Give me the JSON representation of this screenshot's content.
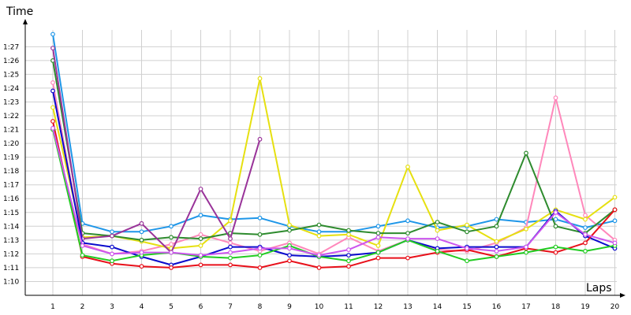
{
  "chart_data": {
    "type": "line",
    "title": "",
    "xlabel": "Laps",
    "ylabel": "Time",
    "grid": true,
    "legend": "none",
    "x": [
      1,
      2,
      3,
      4,
      5,
      6,
      7,
      8,
      9,
      10,
      11,
      12,
      13,
      14,
      15,
      16,
      17,
      18,
      19,
      20
    ],
    "x_tick_labels": [
      "1",
      "2",
      "3",
      "4",
      "5",
      "6",
      "7",
      "8",
      "9",
      "10",
      "11",
      "12",
      "13",
      "14",
      "15",
      "16",
      "17",
      "18",
      "19",
      "20"
    ],
    "y_ticks": [
      70,
      71,
      72,
      73,
      74,
      75,
      76,
      77,
      78,
      79,
      80,
      81,
      82,
      83,
      84,
      85,
      86,
      87
    ],
    "y_tick_labels": [
      "1:10",
      "1:11",
      "1:12",
      "1:13",
      "1:14",
      "1:15",
      "1:16",
      "1:17",
      "1:18",
      "1:19",
      "1:20",
      "1:21",
      "1:22",
      "1:23",
      "1:24",
      "1:25",
      "1:26",
      "1:27"
    ],
    "ylim": [
      69.0,
      88.9
    ],
    "xlim": [
      0.1,
      20.1
    ],
    "series": [
      {
        "color": "#1e96e8",
        "values": [
          87.9,
          74.2,
          73.6,
          73.6,
          74.0,
          74.8,
          74.5,
          74.6,
          74.0,
          73.6,
          73.6,
          74.0,
          74.4,
          73.9,
          74.0,
          74.5,
          74.3,
          74.5,
          73.9,
          74.4
        ]
      },
      {
        "color": "#ff88bb",
        "values": [
          84.4,
          72.7,
          72.0,
          72.2,
          72.7,
          73.4,
          72.8,
          72.2,
          72.8,
          72.0,
          73.2,
          72.2,
          73.0,
          72.3,
          72.2,
          72.8,
          73.9,
          83.3,
          74.8,
          73.0
        ]
      },
      {
        "color": "#e6e010",
        "values": [
          82.6,
          73.2,
          73.3,
          72.9,
          72.4,
          72.6,
          74.4,
          84.7,
          74.1,
          73.3,
          73.4,
          72.6,
          78.3,
          73.7,
          74.1,
          72.9,
          73.8,
          75.2,
          74.5,
          76.1
        ]
      },
      {
        "color": "#2e8b2e",
        "values": [
          86.0,
          73.5,
          73.3,
          73.0,
          73.2,
          73.1,
          73.5,
          73.4,
          73.7,
          74.1,
          73.7,
          73.5,
          73.5,
          74.3,
          73.6,
          74.0,
          79.3,
          74.0,
          73.5,
          75.2
        ]
      },
      {
        "color": "#993399",
        "values": [
          86.9,
          73.1,
          73.3,
          74.2,
          72.1,
          76.7,
          73.1,
          80.3,
          null,
          null,
          null,
          null,
          null,
          null,
          null,
          null,
          null,
          null,
          null,
          null
        ]
      },
      {
        "color": "#0a0acc",
        "values": [
          83.8,
          72.8,
          72.5,
          71.8,
          71.2,
          71.8,
          72.5,
          72.5,
          71.9,
          71.8,
          71.9,
          72.1,
          73.0,
          72.4,
          72.5,
          72.5,
          72.5,
          75.1,
          73.3,
          72.4
        ]
      },
      {
        "color": "#e8101a",
        "values": [
          81.6,
          71.8,
          71.3,
          71.1,
          71.0,
          71.2,
          71.2,
          71.0,
          71.5,
          71.0,
          71.1,
          71.7,
          71.7,
          72.1,
          72.3,
          71.8,
          72.4,
          72.1,
          72.8,
          75.2
        ]
      },
      {
        "color": "#22cc22",
        "values": [
          81.0,
          71.9,
          71.5,
          71.9,
          72.1,
          71.8,
          71.7,
          71.9,
          72.6,
          71.8,
          71.5,
          72.1,
          73.0,
          72.2,
          71.5,
          71.8,
          72.1,
          72.5,
          72.2,
          72.6
        ]
      },
      {
        "color": "#cc55ee",
        "values": [
          81.1,
          72.6,
          72.0,
          72.1,
          72.1,
          71.9,
          72.1,
          72.4,
          72.4,
          71.9,
          72.3,
          73.2,
          73.1,
          73.1,
          72.4,
          72.2,
          72.5,
          75.0,
          73.4,
          72.8
        ]
      }
    ]
  }
}
